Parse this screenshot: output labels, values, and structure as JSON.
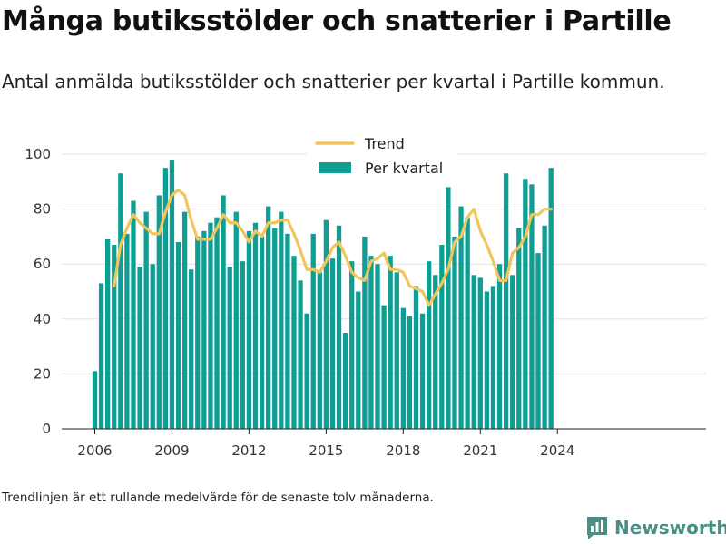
{
  "header": {
    "title": "Många butiksstölder och snatterier i Partille",
    "subtitle": "Antal anmälda butiksstölder och snatterier per kvartal i Partille kommun."
  },
  "footer": {
    "note": "Trendlinjen är ett rullande medelvärde för de senaste tolv månaderna.",
    "brand": "Newsworthy"
  },
  "colors": {
    "bar": "#0f9e93",
    "trend": "#f2c55a",
    "grid": "#e3e3e3",
    "brand": "#4a8f86"
  },
  "icons": {
    "brand": "bar-chart-logo-icon"
  },
  "chart_data": {
    "type": "bar",
    "x_start": "2006-Q1",
    "x_end": "2024-Q1",
    "xticks": [
      "2006",
      "2009",
      "2012",
      "2015",
      "2018",
      "2021",
      "2024"
    ],
    "yticks": [
      "0",
      "20",
      "40",
      "60",
      "80",
      "100"
    ],
    "ylim": [
      0,
      100
    ],
    "grid": true,
    "legend_position": "top-center",
    "series": [
      {
        "name": "Per kvartal",
        "type": "bar",
        "values": [
          21,
          53,
          69,
          67,
          93,
          71,
          83,
          59,
          79,
          60,
          85,
          95,
          98,
          68,
          79,
          58,
          70,
          72,
          75,
          77,
          85,
          59,
          79,
          61,
          72,
          75,
          70,
          81,
          73,
          79,
          71,
          63,
          54,
          42,
          71,
          57,
          76,
          62,
          74,
          35,
          61,
          50,
          70,
          63,
          60,
          45,
          63,
          57,
          44,
          41,
          52,
          42,
          61,
          56,
          67,
          88,
          70,
          81,
          77,
          56,
          55,
          50,
          52,
          60,
          93,
          56,
          73,
          91,
          89,
          64,
          74,
          95
        ]
      },
      {
        "name": "Trend",
        "type": "line",
        "values": [
          null,
          null,
          null,
          52,
          67,
          73,
          78,
          75,
          73,
          71,
          71,
          79,
          85,
          87,
          85,
          76,
          69,
          69,
          69,
          73,
          78,
          75,
          75,
          72,
          68,
          72,
          70,
          75,
          75,
          76,
          76,
          71,
          65,
          58,
          58,
          57,
          61,
          66,
          68,
          63,
          57,
          55,
          54,
          61,
          62,
          64,
          58,
          58,
          57,
          52,
          51,
          50,
          45,
          49,
          53,
          58,
          68,
          70,
          77,
          80,
          72,
          67,
          61,
          54,
          54,
          64,
          66,
          70,
          78,
          78,
          80,
          80
        ]
      }
    ]
  }
}
